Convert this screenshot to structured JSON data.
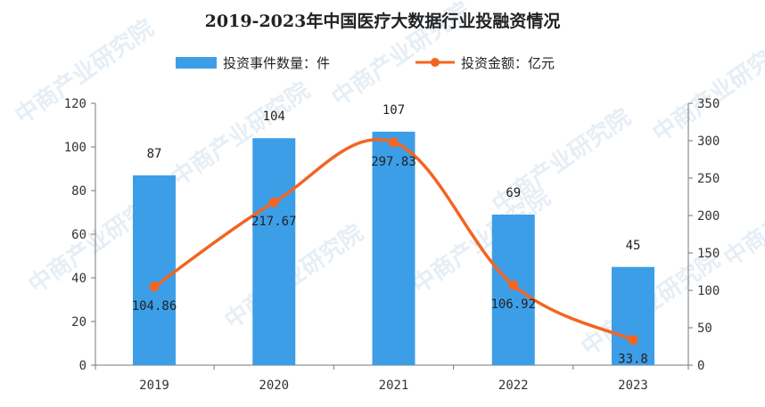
{
  "chart_data": {
    "title": "2019-2023年中国医疗大数据行业投融资情况",
    "type": "bar",
    "categories": [
      "2019",
      "2020",
      "2021",
      "2022",
      "2023"
    ],
    "series": [
      {
        "name": "投资事件数量：件",
        "type": "bar",
        "axis": "left",
        "color": "#3d9ee8",
        "values": [
          87,
          104,
          107,
          69,
          45
        ],
        "labels": [
          "87",
          "104",
          "107",
          "69",
          "45"
        ]
      },
      {
        "name": "投资金额：亿元",
        "type": "line",
        "axis": "right",
        "color": "#f26522",
        "smooth": true,
        "values": [
          104.86,
          217.67,
          297.83,
          106.92,
          33.8
        ],
        "labels": [
          "104.86",
          "217.67",
          "297.83",
          "106.92",
          "33.8"
        ]
      }
    ],
    "y_left": {
      "min": 0,
      "max": 120,
      "step": 20
    },
    "y_right": {
      "min": 0,
      "max": 350,
      "step": 50
    },
    "legend": "top-center",
    "grid": false,
    "watermark": "中商产业研究院"
  }
}
